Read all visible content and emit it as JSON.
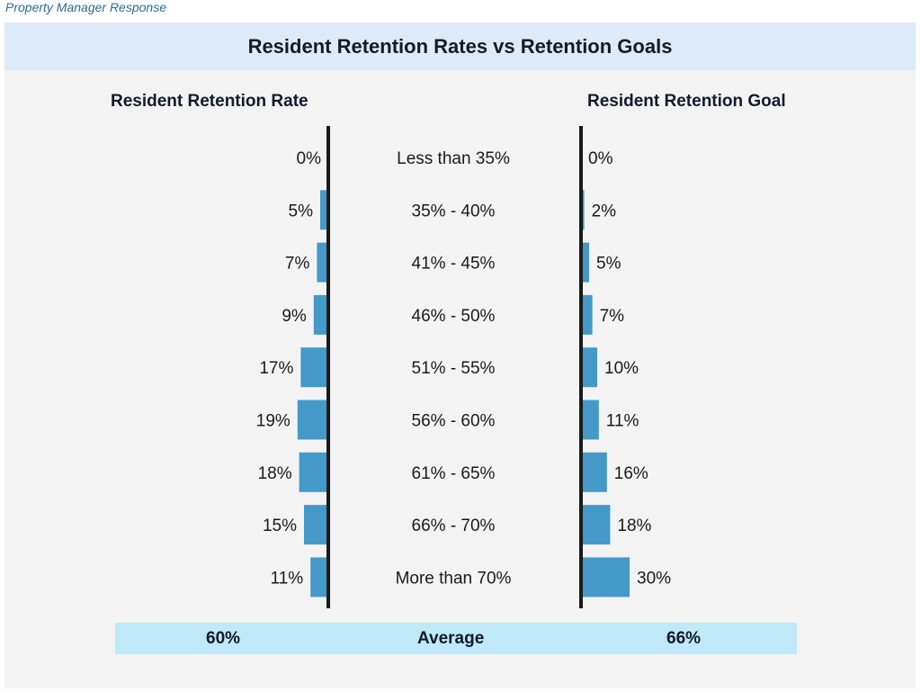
{
  "header": {
    "subtitle": "Property Manager Response",
    "title": "Resident Retention Rates vs Retention Goals"
  },
  "colors": {
    "bar": "#4599c9",
    "axis": "#1a1a1a",
    "title_bg": "#dcebf7",
    "avg_bg": "#bfe9f8"
  },
  "chart_data": {
    "type": "bar",
    "title": "Resident Retention Rates vs Retention Goals",
    "categories": [
      "Less than 35%",
      "35% - 40%",
      "41% - 45%",
      "46% - 50%",
      "51% - 55%",
      "56% - 60%",
      "61% - 65%",
      "66% - 70%",
      "More than 70%"
    ],
    "series": [
      {
        "name": "Resident Retention Rate",
        "values": [
          0,
          5,
          7,
          9,
          17,
          19,
          18,
          15,
          11
        ],
        "labels": [
          "0%",
          "5%",
          "7%",
          "9%",
          "17%",
          "19%",
          "18%",
          "15%",
          "11%"
        ]
      },
      {
        "name": "Resident Retention Goal",
        "values": [
          0,
          2,
          5,
          7,
          10,
          11,
          16,
          18,
          30
        ],
        "labels": [
          "0%",
          "2%",
          "5%",
          "7%",
          "10%",
          "11%",
          "16%",
          "18%",
          "30%"
        ]
      }
    ],
    "average": {
      "label": "Average",
      "rate": "60%",
      "goal": "66%"
    }
  }
}
